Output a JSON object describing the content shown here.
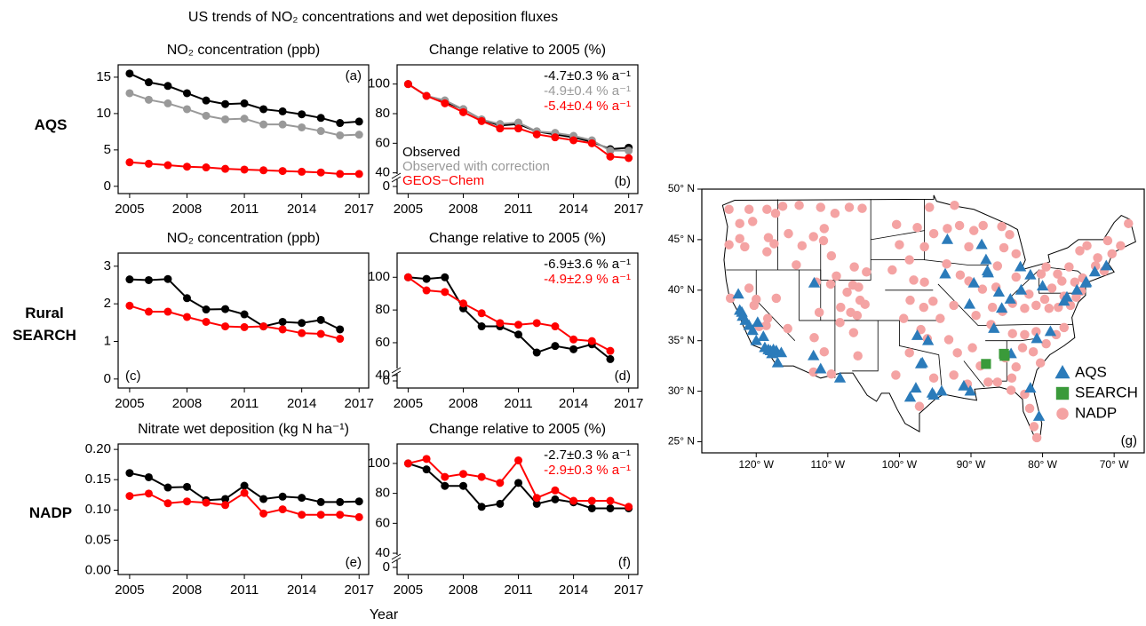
{
  "title": "US trends of NO₂ concentrations and wet deposition fluxes",
  "xlabel": "Year",
  "row_labels": [
    "AQS",
    "Rural SEARCH",
    "NADP"
  ],
  "chart_data": [
    {
      "type": "line",
      "title": "NO₂ concentration (ppb)",
      "panel_label": "(a)",
      "label_corner": "upper right",
      "x": [
        2005,
        2006,
        2007,
        2008,
        2009,
        2010,
        2011,
        2012,
        2013,
        2014,
        2015,
        2016,
        2017
      ],
      "xlim": [
        2004.4,
        2017.5
      ],
      "xticks": [
        2005,
        2008,
        2011,
        2014,
        2017
      ],
      "ylim": [
        -1,
        16.7
      ],
      "yticks": [
        0,
        5,
        10,
        15
      ],
      "series": [
        {
          "color": "#000000",
          "values": [
            15.5,
            14.3,
            13.8,
            12.8,
            11.8,
            11.3,
            11.4,
            10.6,
            10.3,
            9.9,
            9.4,
            8.7,
            8.9
          ]
        },
        {
          "color": "#999999",
          "values": [
            12.8,
            11.9,
            11.4,
            10.6,
            9.7,
            9.2,
            9.3,
            8.5,
            8.5,
            8.1,
            7.6,
            7.0,
            7.1
          ]
        },
        {
          "color": "#ff0000",
          "values": [
            3.3,
            3.1,
            2.9,
            2.7,
            2.6,
            2.4,
            2.3,
            2.2,
            2.1,
            2.0,
            1.9,
            1.7,
            1.7
          ]
        }
      ]
    },
    {
      "type": "line",
      "title": "Change relative to 2005 (%)",
      "panel_label": "(b)",
      "label_corner": "lower right",
      "x": [
        2005,
        2006,
        2007,
        2008,
        2009,
        2010,
        2011,
        2012,
        2013,
        2014,
        2015,
        2016,
        2017
      ],
      "xlim": [
        2004.4,
        2017.5
      ],
      "xticks": [
        2005,
        2008,
        2011,
        2014,
        2017
      ],
      "ylim": [
        26,
        113
      ],
      "yticks": [
        40,
        60,
        80,
        100
      ],
      "ybreak_tick": 0,
      "legend": "lower left",
      "annotations": [
        {
          "text": "-4.7±0.3 % a⁻¹",
          "color": "#000000"
        },
        {
          "text": "-4.9±0.4 % a⁻¹",
          "color": "#999999"
        },
        {
          "text": "-5.4±0.4 % a⁻¹",
          "color": "#ff0000"
        }
      ],
      "series": [
        {
          "name": "Observed",
          "color": "#000000",
          "values": [
            100,
            92,
            88,
            83,
            76,
            72,
            73,
            68,
            66,
            64,
            61,
            56,
            57
          ]
        },
        {
          "name": "Observed with correction",
          "color": "#999999",
          "values": [
            100,
            92,
            89,
            83,
            76,
            73,
            74,
            68,
            67,
            65,
            62,
            55,
            55
          ]
        },
        {
          "name": "GEOS−Chem",
          "color": "#ff0000",
          "values": [
            100,
            92,
            87,
            81,
            75,
            70,
            70,
            66,
            64,
            62,
            60,
            51,
            50
          ]
        }
      ]
    },
    {
      "type": "line",
      "title": "NO₂ concentration (ppb)",
      "panel_label": "(c)",
      "label_corner": "lower left",
      "x": [
        2005,
        2006,
        2007,
        2008,
        2009,
        2010,
        2011,
        2012,
        2013,
        2014,
        2015,
        2016,
        2017
      ],
      "xlim": [
        2004.4,
        2017.5
      ],
      "xticks": [
        2005,
        2008,
        2011,
        2014,
        2017
      ],
      "ylim": [
        -0.24,
        3.35
      ],
      "yticks": [
        0,
        1,
        2,
        3
      ],
      "series": [
        {
          "color": "#000000",
          "values": [
            2.65,
            2.63,
            2.66,
            2.15,
            1.85,
            1.86,
            1.72,
            1.4,
            1.52,
            1.49,
            1.57,
            1.32,
            null
          ]
        },
        {
          "color": "#ff0000",
          "values": [
            1.95,
            1.79,
            1.79,
            1.65,
            1.52,
            1.4,
            1.38,
            1.4,
            1.32,
            1.22,
            1.2,
            1.07,
            null
          ]
        }
      ]
    },
    {
      "type": "line",
      "title": "Change relative to 2005 (%)",
      "panel_label": "(d)",
      "label_corner": "lower right",
      "x": [
        2005,
        2006,
        2007,
        2008,
        2009,
        2010,
        2011,
        2012,
        2013,
        2014,
        2015,
        2016,
        2017
      ],
      "xlim": [
        2004.4,
        2017.5
      ],
      "xticks": [
        2005,
        2008,
        2011,
        2014,
        2017
      ],
      "ylim": [
        32.3,
        114.8
      ],
      "yticks": [
        40,
        60,
        80,
        100
      ],
      "ybreak_tick": 0,
      "annotations": [
        {
          "text": "-6.9±3.6 % a⁻¹",
          "color": "#000000"
        },
        {
          "text": "-4.9±2.9 % a⁻¹",
          "color": "#ff0000"
        }
      ],
      "series": [
        {
          "color": "#000000",
          "values": [
            100,
            99,
            100,
            81,
            70,
            70,
            65,
            54,
            58,
            56,
            59,
            50,
            null
          ]
        },
        {
          "color": "#ff0000",
          "values": [
            100,
            92,
            91,
            84,
            78,
            72,
            71,
            72,
            70,
            62,
            61,
            55,
            null
          ]
        }
      ]
    },
    {
      "type": "line",
      "title": "Nitrate wet deposition (kg N ha⁻¹)",
      "panel_label": "(e)",
      "label_corner": "lower right",
      "x": [
        2005,
        2006,
        2007,
        2008,
        2009,
        2010,
        2011,
        2012,
        2013,
        2014,
        2015,
        2016,
        2017
      ],
      "xlim": [
        2004.4,
        2017.5
      ],
      "xticks": [
        2005,
        2008,
        2011,
        2014,
        2017
      ],
      "ylim": [
        -0.0068,
        0.209
      ],
      "yticks": [
        {
          "value": 0,
          "label": "0.00"
        },
        {
          "value": 0.05,
          "label": "0.05"
        },
        {
          "value": 0.1,
          "label": "0.10"
        },
        {
          "value": 0.15,
          "label": "0.15"
        },
        {
          "value": 0.2,
          "label": "0.20"
        }
      ],
      "series": [
        {
          "color": "#000000",
          "values": [
            0.161,
            0.154,
            0.137,
            0.138,
            0.116,
            0.118,
            0.14,
            0.118,
            0.122,
            0.12,
            0.113,
            0.113,
            0.114
          ]
        },
        {
          "color": "#ff0000",
          "values": [
            0.123,
            0.127,
            0.111,
            0.114,
            0.112,
            0.108,
            0.128,
            0.094,
            0.101,
            0.092,
            0.092,
            0.092,
            0.088
          ]
        }
      ]
    },
    {
      "type": "line",
      "title": "Change relative to 2005 (%)",
      "panel_label": "(f)",
      "label_corner": "lower right",
      "x": [
        2005,
        2006,
        2007,
        2008,
        2009,
        2010,
        2011,
        2012,
        2013,
        2014,
        2015,
        2016,
        2017
      ],
      "xlim": [
        2004.4,
        2017.5
      ],
      "xticks": [
        2005,
        2008,
        2011,
        2014,
        2017
      ],
      "ylim": [
        25.8,
        113
      ],
      "yticks": [
        40,
        60,
        80,
        100
      ],
      "ybreak_tick": 0,
      "annotations": [
        {
          "text": "-2.7±0.3 % a⁻¹",
          "color": "#000000"
        },
        {
          "text": "-2.9±0.3 % a⁻¹",
          "color": "#ff0000"
        }
      ],
      "series": [
        {
          "color": "#000000",
          "values": [
            100,
            96,
            85,
            85,
            71,
            73,
            87,
            73,
            76,
            74,
            70,
            70,
            70
          ]
        },
        {
          "color": "#ff0000",
          "values": [
            100,
            103,
            91,
            93,
            91,
            87,
            102,
            77,
            82,
            75,
            75,
            75,
            71
          ]
        }
      ]
    },
    {
      "type": "map",
      "panel_label": "(g)",
      "label_corner": "lower right",
      "legend": "lower right",
      "xlim": [
        -127.6,
        -65.8
      ],
      "ylim": [
        23.9,
        50
      ],
      "xticks": [
        {
          "value": -120,
          "label": "120° W"
        },
        {
          "value": -110,
          "label": "110° W"
        },
        {
          "value": -100,
          "label": "100° W"
        },
        {
          "value": -90,
          "label": "90° W"
        },
        {
          "value": -80,
          "label": "80° W"
        },
        {
          "value": -70,
          "label": "70° W"
        }
      ],
      "yticks": [
        {
          "value": 25,
          "label": "25° N"
        },
        {
          "value": 30,
          "label": "30° N"
        },
        {
          "value": 35,
          "label": "35° N"
        },
        {
          "value": 40,
          "label": "40° N"
        },
        {
          "value": 45,
          "label": "45° N"
        },
        {
          "value": 50,
          "label": "50° N"
        }
      ],
      "series": [
        {
          "name": "NADP",
          "marker": "circle",
          "color": "#f4a3a3",
          "x": [
            -123.8,
            -121,
            -118.5,
            -117.3,
            -122.3,
            -120.5,
            -123.8,
            -122.3,
            -121.6,
            -118.3,
            -117.5,
            -118.5,
            -123.6,
            -121,
            -120.3,
            -118.4,
            -119.6,
            -118.6,
            -120,
            -116.3,
            -114,
            -111,
            -109,
            -107,
            -105.2,
            -110.5,
            -112,
            -113.6,
            -115.5,
            -114.4,
            -110.6,
            -109.5,
            -108.8,
            -106.3,
            -104.6,
            -117.2,
            -115.6,
            -111.6,
            -111.2,
            -109.6,
            -107.3,
            -105.7,
            -106.8,
            -105.5,
            -108.2,
            -104.8,
            -106.5,
            -105.9,
            -111.9,
            -110.5,
            -109.5,
            -106.4,
            -105.8,
            -108.3,
            -112,
            -100.4,
            -97.5,
            -100,
            -98.6,
            -96.5,
            -101,
            -98,
            -96.5,
            -98.5,
            -95.3,
            -96.6,
            -99.4,
            -97,
            -96.1,
            -98.6,
            -100.5,
            -97.2,
            -95.2,
            -95.8,
            -92.3,
            -93.3,
            -95.2,
            -91.6,
            -89.6,
            -90.3,
            -88.3,
            -85.7,
            -84.6,
            -85.4,
            -83.7,
            -86.3,
            -93.4,
            -91.5,
            -90.3,
            -88.4,
            -89.3,
            -92.4,
            -94.3,
            -93.1,
            -91.9,
            -92.4,
            -89.8,
            -88.7,
            -90.5,
            -87.2,
            -85.6,
            -84.2,
            -83.7,
            -86.5,
            -87,
            -85.2,
            -84.3,
            -83.7,
            -82.8,
            -81.3,
            -80.3,
            -79.5,
            -80.9,
            -82.5,
            -84.2,
            -78.1,
            -77,
            -82.5,
            -81.8,
            -81.2,
            -80.8,
            -84.4,
            -86.3,
            -87.6,
            -80.2,
            -79.5,
            -77.9,
            -76.3,
            -74.8,
            -73.8,
            -72.3,
            -70.9,
            -69.1,
            -68,
            -70.3,
            -72.6,
            -71.4,
            -74.4,
            -75.5,
            -77.3,
            -78.7,
            -79.7,
            -79.1,
            -77.8,
            -76.1,
            -75.3,
            -80.9,
            -81.9,
            -82.5,
            -77,
            -74.6
          ],
          "values": [
            48,
            48,
            48,
            47.6,
            46.6,
            46.8,
            44.5,
            45.1,
            44.3,
            45.2,
            44.6,
            43.8,
            39.2,
            40.2,
            38.5,
            37.2,
            36.4,
            36.5,
            39.1,
            48.3,
            48.4,
            48.2,
            47.6,
            48.2,
            48.1,
            46.1,
            45.3,
            44.4,
            45.6,
            42.5,
            44.9,
            43.4,
            41.4,
            42.3,
            41.8,
            39.2,
            36.2,
            40.8,
            37.8,
            40.6,
            39.8,
            40.3,
            37.8,
            39,
            38.3,
            38.6,
            40.5,
            37.5,
            35.3,
            33.9,
            31.7,
            35.8,
            33.5,
            36.8,
            31.9,
            46.5,
            46.2,
            44.5,
            43,
            44.3,
            42,
            41,
            40.8,
            39,
            38.9,
            38.3,
            37.2,
            36.1,
            35.2,
            33.8,
            31.6,
            28.5,
            31.3,
            48.2,
            48.4,
            46.1,
            45.6,
            46.4,
            45.9,
            44.3,
            46.4,
            46.3,
            45.5,
            44.2,
            43.6,
            42.4,
            42.6,
            41.5,
            40.9,
            40.1,
            37.5,
            38.5,
            37.2,
            35.1,
            33.8,
            31.6,
            34.3,
            32.5,
            30.7,
            36.6,
            37.9,
            38.7,
            41.3,
            40.3,
            38.3,
            33.3,
            31.3,
            32.4,
            34.3,
            33.9,
            32.8,
            34.7,
            35.9,
            35.6,
            35.7,
            35.6,
            36.3,
            29.7,
            28.3,
            26.5,
            25.4,
            30.1,
            30.9,
            30.9,
            41.6,
            42.3,
            41.6,
            42.3,
            43.9,
            44.4,
            43.2,
            44.9,
            44.4,
            46.6,
            43.6,
            42.4,
            41.9,
            41.2,
            40.8,
            40.9,
            40.2,
            39.1,
            38.2,
            38.3,
            38.5,
            39.3,
            38.5,
            39.6,
            38.2,
            39.4,
            39.9
          ]
        },
        {
          "name": "AQS",
          "marker": "triangle",
          "color": "#2b7bba",
          "x": [
            -122.3,
            -122,
            -121.9,
            -121.5,
            -121,
            -120.5,
            -119.8,
            -119,
            -118.3,
            -118,
            -117.6,
            -117.2,
            -117,
            -116.5,
            -122.5,
            -120,
            -118.8,
            -117.8,
            -112,
            -111,
            -111.9,
            -108.3,
            -96.8,
            -97,
            -95.4,
            -95.2,
            -94.1,
            -97.7,
            -98.5,
            -96,
            -97.5,
            -90.2,
            -87.7,
            -87.6,
            -86.1,
            -84.5,
            -83,
            -83.1,
            -81.7,
            -80,
            -78.9,
            -77,
            -76.6,
            -75.2,
            -74,
            -73.9,
            -71.1,
            -72.7,
            -80.8,
            -84.4,
            -81.7,
            -80.5,
            -90.1,
            -91,
            -86.8,
            -85.7,
            -89.6,
            -93.6,
            -93.3,
            -87.9,
            -88.5
          ],
          "values": [
            38,
            37.8,
            37.4,
            37,
            36.5,
            36,
            36.8,
            35.4,
            34.1,
            34,
            34.1,
            34,
            32.8,
            33.8,
            39.6,
            35,
            34.3,
            33.7,
            33.5,
            32.2,
            40.7,
            31.3,
            32.8,
            32.7,
            29.8,
            29.6,
            30,
            30.3,
            29.4,
            35,
            35.5,
            38.6,
            41.9,
            41.7,
            39.8,
            39.1,
            40,
            42.3,
            41.5,
            40.4,
            35.9,
            38.9,
            39.3,
            40,
            40.7,
            40.8,
            42.4,
            41.8,
            35.2,
            33.7,
            30.3,
            27.5,
            30,
            30.5,
            36.2,
            38.2,
            40.7,
            41.6,
            45,
            43,
            44.5
          ]
        },
        {
          "name": "SEARCH",
          "marker": "square",
          "color": "#3a9a3a",
          "x": [
            -87.9,
            -85.4,
            -85.3
          ],
          "values": [
            32.7,
            33.7,
            33.5
          ]
        }
      ]
    }
  ]
}
